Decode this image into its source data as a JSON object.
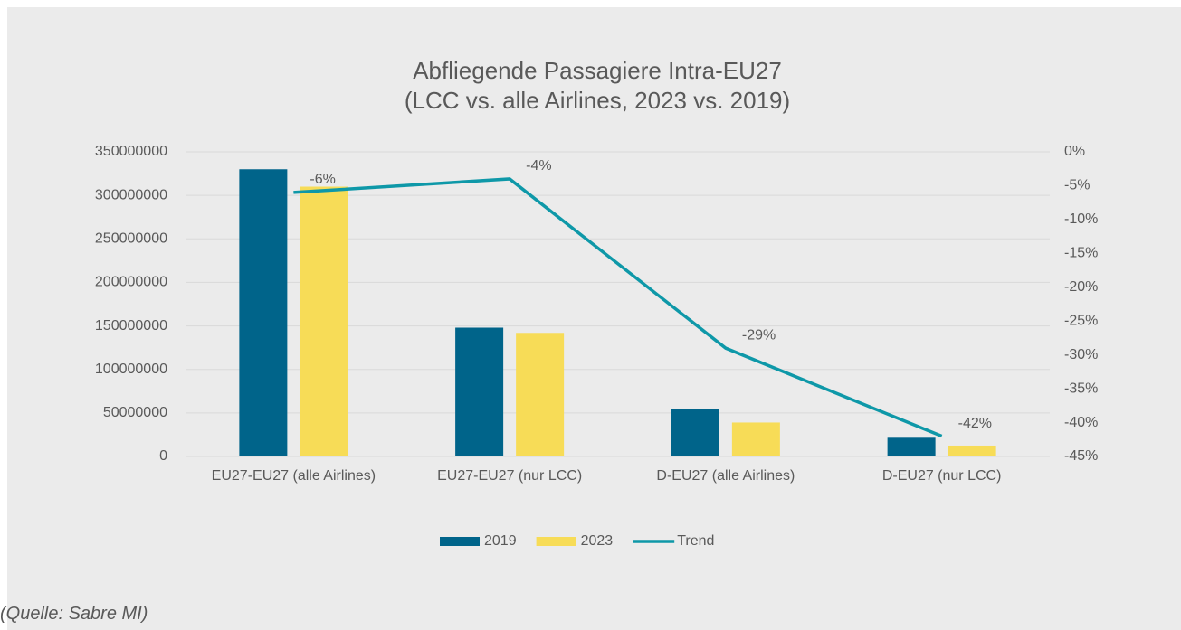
{
  "chart_data": {
    "type": "bar",
    "title": "Abfliegende Passagiere Intra-EU27",
    "subtitle": "(LCC vs. alle Airlines, 2023 vs. 2019)",
    "categories": [
      "EU27-EU27 (alle Airlines)",
      "EU27-EU27 (nur LCC)",
      "D-EU27 (alle Airlines)",
      "D-EU27 (nur LCC)"
    ],
    "series": [
      {
        "name": "2019",
        "type": "bar",
        "color": "#00648a",
        "values": [
          330000000,
          148000000,
          55000000,
          21500000
        ]
      },
      {
        "name": "2023",
        "type": "bar",
        "color": "#f7dc57",
        "values": [
          310000000,
          142000000,
          39000000,
          12500000
        ]
      },
      {
        "name": "Trend",
        "type": "line",
        "axis": "y2",
        "color": "#0e98a8",
        "values": [
          -6,
          -4,
          -29,
          -42
        ],
        "value_labels": [
          "-6%",
          "-4%",
          "-29%",
          "-42%"
        ]
      }
    ],
    "ylim": [
      0,
      350000000
    ],
    "yticks": [
      0,
      50000000,
      100000000,
      150000000,
      200000000,
      250000000,
      300000000,
      350000000
    ],
    "y2lim": [
      -45,
      0
    ],
    "y2ticks": [
      {
        "value": 0,
        "label": "0%"
      },
      {
        "value": -5,
        "label": "-5%"
      },
      {
        "value": -10,
        "label": "-10%"
      },
      {
        "value": -15,
        "label": "-15%"
      },
      {
        "value": -20,
        "label": "-20%"
      },
      {
        "value": -25,
        "label": "-25%"
      },
      {
        "value": -30,
        "label": "-30%"
      },
      {
        "value": -35,
        "label": "-35%"
      },
      {
        "value": -40,
        "label": "-40%"
      },
      {
        "value": -45,
        "label": "-45%"
      }
    ],
    "grid": true,
    "legend": "bottom"
  },
  "source": "(Quelle: Sabre MI)"
}
